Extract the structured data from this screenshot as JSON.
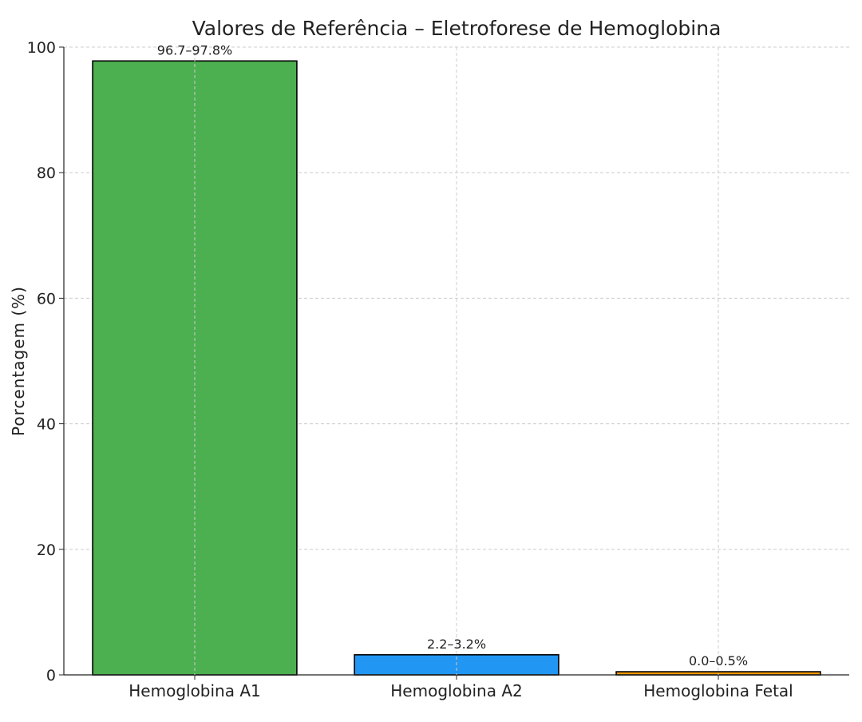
{
  "chart_data": {
    "type": "bar",
    "title": "Valores de Referência – Eletroforese de Hemoglobina",
    "xlabel": "",
    "ylabel": "Porcentagem (%)",
    "ylim": [
      0,
      100
    ],
    "yticks": [
      0,
      20,
      40,
      60,
      80,
      100
    ],
    "grid": true,
    "categories": [
      "Hemoglobina A1",
      "Hemoglobina A2",
      "Hemoglobina Fetal"
    ],
    "values": [
      97.8,
      3.2,
      0.5
    ],
    "data_labels": [
      "96.7–97.8%",
      "2.2–3.2%",
      "0.0–0.5%"
    ],
    "colors": [
      "#4caf50",
      "#2196f3",
      "#ff9800"
    ],
    "edge_color": "#000000"
  }
}
